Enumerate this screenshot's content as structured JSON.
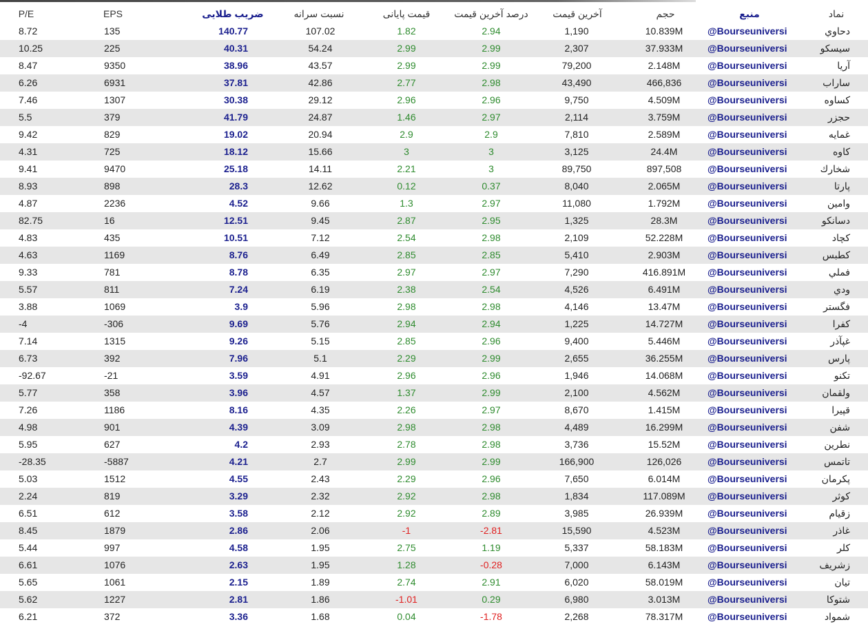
{
  "table": {
    "header": [
      "نماد",
      "منبع",
      "حجم",
      "آخرین قیمت",
      "درصد آخرین قیمت",
      "قیمت پایانی",
      "نسبت سرانه",
      "ضریب طلایی",
      "EPS",
      "P/E"
    ],
    "rows": [
      [
        "دحاوي",
        "@Bourseuniversi",
        "10.839M",
        "1,190",
        "2.94",
        "1.82",
        "107.02",
        "140.77",
        "135",
        "8.72"
      ],
      [
        "سيسكو",
        "@Bourseuniversi",
        "37.933M",
        "2,307",
        "2.99",
        "2.99",
        "54.24",
        "40.31",
        "225",
        "10.25"
      ],
      [
        "آريا",
        "@Bourseuniversi",
        "2.148M",
        "79,200",
        "2.99",
        "2.99",
        "43.57",
        "38.96",
        "9350",
        "8.47"
      ],
      [
        "ساراب",
        "@Bourseuniversi",
        "466,836",
        "43,490",
        "2.98",
        "2.77",
        "42.86",
        "37.81",
        "6931",
        "6.26"
      ],
      [
        "كساوه",
        "@Bourseuniversi",
        "4.509M",
        "9,750",
        "2.96",
        "2.96",
        "29.12",
        "30.38",
        "1307",
        "7.46"
      ],
      [
        "حجزر",
        "@Bourseuniversi",
        "3.759M",
        "2,114",
        "2.97",
        "1.46",
        "24.87",
        "41.79",
        "379",
        "5.5"
      ],
      [
        "غمايه",
        "@Bourseuniversi",
        "2.589M",
        "7,810",
        "2.9",
        "2.9",
        "20.94",
        "19.02",
        "829",
        "9.42"
      ],
      [
        "كاوه",
        "@Bourseuniversi",
        "24.4M",
        "3,125",
        "3",
        "3",
        "15.66",
        "18.12",
        "725",
        "4.31"
      ],
      [
        "شخارك",
        "@Bourseuniversi",
        "897,508",
        "89,750",
        "3",
        "2.21",
        "14.11",
        "25.18",
        "9470",
        "9.41"
      ],
      [
        "پارتا",
        "@Bourseuniversi",
        "2.065M",
        "8,040",
        "0.37",
        "0.12",
        "12.62",
        "28.3",
        "898",
        "8.93"
      ],
      [
        "وامين",
        "@Bourseuniversi",
        "1.792M",
        "11,080",
        "2.97",
        "1.3",
        "9.66",
        "4.52",
        "2236",
        "4.87"
      ],
      [
        "دسانكو",
        "@Bourseuniversi",
        "28.3M",
        "1,325",
        "2.95",
        "2.87",
        "9.45",
        "12.51",
        "16",
        "82.75"
      ],
      [
        "كچاد",
        "@Bourseuniversi",
        "52.228M",
        "2,109",
        "2.98",
        "2.54",
        "7.12",
        "10.51",
        "435",
        "4.83"
      ],
      [
        "كطبس",
        "@Bourseuniversi",
        "2.903M",
        "5,410",
        "2.85",
        "2.85",
        "6.49",
        "8.76",
        "1169",
        "4.63"
      ],
      [
        "فملي",
        "@Bourseuniversi",
        "416.891M",
        "7,290",
        "2.97",
        "2.97",
        "6.35",
        "8.78",
        "781",
        "9.33"
      ],
      [
        "ودي",
        "@Bourseuniversi",
        "6.491M",
        "4,526",
        "2.54",
        "2.38",
        "6.19",
        "7.24",
        "811",
        "5.57"
      ],
      [
        "فگستر",
        "@Bourseuniversi",
        "13.47M",
        "4,146",
        "2.98",
        "2.98",
        "5.96",
        "3.9",
        "1069",
        "3.88"
      ],
      [
        "كفرا",
        "@Bourseuniversi",
        "14.727M",
        "1,225",
        "2.94",
        "2.94",
        "5.76",
        "9.69",
        "-306",
        "-4"
      ],
      [
        "غپآذر",
        "@Bourseuniversi",
        "5.446M",
        "9,400",
        "2.96",
        "2.85",
        "5.15",
        "9.26",
        "1315",
        "7.14"
      ],
      [
        "پارس",
        "@Bourseuniversi",
        "36.255M",
        "2,655",
        "2.99",
        "2.29",
        "5.1",
        "7.96",
        "392",
        "6.73"
      ],
      [
        "تكنو",
        "@Bourseuniversi",
        "14.068M",
        "1,946",
        "2.96",
        "2.96",
        "4.91",
        "3.59",
        "-21",
        "-92.67"
      ],
      [
        "ولقمان",
        "@Bourseuniversi",
        "4.562M",
        "2,100",
        "2.99",
        "1.37",
        "4.57",
        "3.96",
        "358",
        "5.77"
      ],
      [
        "قپيرا",
        "@Bourseuniversi",
        "1.415M",
        "8,670",
        "2.97",
        "2.26",
        "4.35",
        "8.16",
        "1186",
        "7.26"
      ],
      [
        "شفن",
        "@Bourseuniversi",
        "16.299M",
        "4,489",
        "2.98",
        "2.98",
        "3.09",
        "4.39",
        "901",
        "4.98"
      ],
      [
        "نطرين",
        "@Bourseuniversi",
        "15.52M",
        "3,736",
        "2.98",
        "2.78",
        "2.93",
        "4.2",
        "627",
        "5.95"
      ],
      [
        "تاتمس",
        "@Bourseuniversi",
        "126,026",
        "166,900",
        "2.99",
        "2.99",
        "2.7",
        "4.21",
        "-5887",
        "-28.35"
      ],
      [
        "پكرمان",
        "@Bourseuniversi",
        "6.014M",
        "7,650",
        "2.96",
        "2.29",
        "2.43",
        "4.55",
        "1512",
        "5.03"
      ],
      [
        "كوثر",
        "@Bourseuniversi",
        "117.089M",
        "1,834",
        "2.98",
        "2.92",
        "2.32",
        "3.29",
        "819",
        "2.24"
      ],
      [
        "زقيام",
        "@Bourseuniversi",
        "26.939M",
        "3,985",
        "2.89",
        "2.92",
        "2.12",
        "3.58",
        "612",
        "6.51"
      ],
      [
        "غاذر",
        "@Bourseuniversi",
        "4.523M",
        "15,590",
        "-2.81",
        "-1",
        "2.06",
        "2.86",
        "1879",
        "8.45"
      ],
      [
        "كلر",
        "@Bourseuniversi",
        "58.183M",
        "5,337",
        "1.19",
        "2.75",
        "1.95",
        "4.58",
        "997",
        "5.44"
      ],
      [
        "زشريف",
        "@Bourseuniversi",
        "6.143M",
        "7,000",
        "-0.28",
        "1.28",
        "1.95",
        "2.63",
        "1076",
        "6.61"
      ],
      [
        "تيان",
        "@Bourseuniversi",
        "58.019M",
        "6,020",
        "2.91",
        "2.74",
        "1.89",
        "2.15",
        "1061",
        "5.65"
      ],
      [
        "شتوكا",
        "@Bourseuniversi",
        "3.013M",
        "6,980",
        "0.29",
        "-1.01",
        "1.86",
        "2.81",
        "1227",
        "5.62"
      ],
      [
        "شمواد",
        "@Bourseuniversi",
        "78.317M",
        "2,268",
        "-1.78",
        "0.04",
        "1.68",
        "3.36",
        "372",
        "6.21"
      ]
    ]
  }
}
